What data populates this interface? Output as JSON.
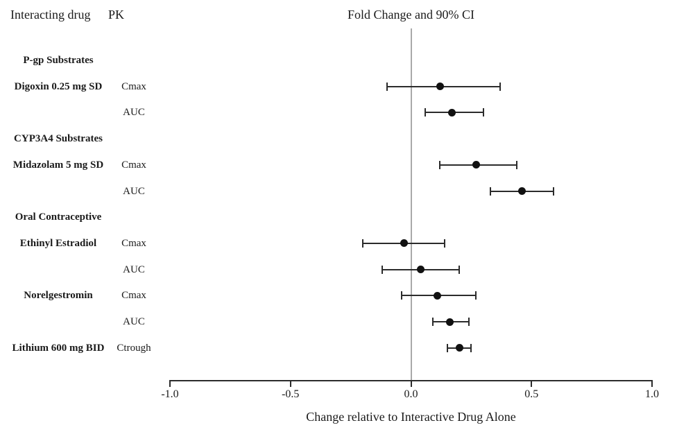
{
  "headers": {
    "interacting_drug": "Interacting drug",
    "pk": "PK"
  },
  "chart_data": {
    "type": "scatter",
    "variant": "forest-plot-point-estimates-with-90pct-ci-error-bars",
    "title": "Fold Change and 90% CI",
    "xlabel": "Change relative to Interactive Drug Alone",
    "xlim": [
      -1.0,
      1.0
    ],
    "x_ticks": [
      -1.0,
      -0.5,
      0.0,
      0.5,
      1.0
    ],
    "x_tick_labels": [
      "-1.0",
      "-0.5",
      "0.0",
      "0.5",
      "1.0"
    ],
    "reference_line_x": 0.0,
    "grid": "off",
    "legend": "none",
    "rows": [
      {
        "row_type": "group",
        "label": "P-gp Substrates"
      },
      {
        "row_type": "data",
        "drug": "Digoxin 0.25 mg SD",
        "pk": "Cmax",
        "estimate": 0.12,
        "ci_low": -0.1,
        "ci_high": 0.37
      },
      {
        "row_type": "data",
        "drug": "",
        "pk": "AUC",
        "estimate": 0.17,
        "ci_low": 0.06,
        "ci_high": 0.3
      },
      {
        "row_type": "group",
        "label": "CYP3A4 Substrates"
      },
      {
        "row_type": "data",
        "drug": "Midazolam 5 mg SD",
        "pk": "Cmax",
        "estimate": 0.27,
        "ci_low": 0.12,
        "ci_high": 0.44
      },
      {
        "row_type": "data",
        "drug": "",
        "pk": "AUC",
        "estimate": 0.46,
        "ci_low": 0.33,
        "ci_high": 0.59
      },
      {
        "row_type": "group",
        "label": "Oral Contraceptive"
      },
      {
        "row_type": "data",
        "drug": "Ethinyl Estradiol",
        "pk": "Cmax",
        "estimate": -0.03,
        "ci_low": -0.2,
        "ci_high": 0.14
      },
      {
        "row_type": "data",
        "drug": "",
        "pk": "AUC",
        "estimate": 0.04,
        "ci_low": -0.12,
        "ci_high": 0.2
      },
      {
        "row_type": "data",
        "drug": "Norelgestromin",
        "pk": "Cmax",
        "estimate": 0.11,
        "ci_low": -0.04,
        "ci_high": 0.27
      },
      {
        "row_type": "data",
        "drug": "",
        "pk": "AUC",
        "estimate": 0.16,
        "ci_low": 0.09,
        "ci_high": 0.24
      },
      {
        "row_type": "data",
        "drug": "Lithium 600 mg BID",
        "pk": "Ctrough",
        "estimate": 0.2,
        "ci_low": 0.15,
        "ci_high": 0.25
      }
    ]
  },
  "colors": {
    "text": "#1a1a1a",
    "marker": "#111111",
    "error_bar": "#2b2b2b",
    "axis": "#2b2b2b",
    "reference_line": "#a9a9a9",
    "background": "#ffffff"
  }
}
